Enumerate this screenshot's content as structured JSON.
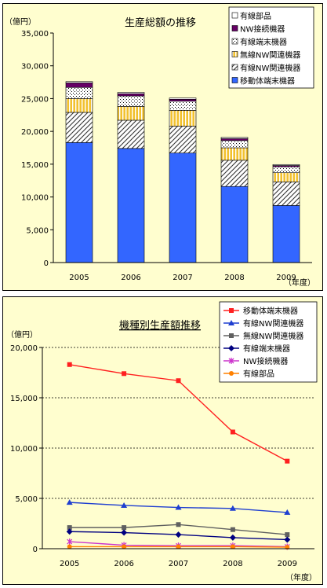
{
  "chart_data": [
    {
      "type": "bar",
      "stacked": true,
      "title": "生産総額の推移",
      "ylabel": "（億円）",
      "xlabel": "（年度）",
      "ylim": [
        0,
        35000
      ],
      "yticks": [
        "0",
        "5,000",
        "10,000",
        "15,000",
        "20,000",
        "25,000",
        "30,000",
        "35,000"
      ],
      "categories": [
        "2005",
        "2006",
        "2007",
        "2008",
        "2009"
      ],
      "legend_position": "top-right",
      "grid": false,
      "series": [
        {
          "name": "移動体端末機器",
          "values": [
            18300,
            17400,
            16700,
            11600,
            8700
          ],
          "color": "#3366ff",
          "pattern": "solid"
        },
        {
          "name": "有線NW関連機器",
          "values": [
            4600,
            4300,
            4100,
            4000,
            3600
          ],
          "color": "#ffffff",
          "pattern": "diagonal"
        },
        {
          "name": "無線NW関連機器",
          "values": [
            2100,
            2100,
            2400,
            1900,
            1400
          ],
          "color": "#f2c12e",
          "pattern": "vertical"
        },
        {
          "name": "有線端末機器",
          "values": [
            1700,
            1600,
            1400,
            1100,
            900
          ],
          "color": "#ffffff",
          "pattern": "dots"
        },
        {
          "name": "NW接続機器",
          "values": [
            700,
            350,
            300,
            300,
            200
          ],
          "color": "#660066",
          "pattern": "solid"
        },
        {
          "name": "有線部品",
          "values": [
            200,
            200,
            200,
            200,
            150
          ],
          "color": "#ffffff",
          "pattern": "plain"
        }
      ]
    },
    {
      "type": "line",
      "title": "機種別生産額推移",
      "ylabel": "（億円）",
      "xlabel": "（年度）",
      "ylim": [
        0,
        20000
      ],
      "yticks": [
        "0",
        "5,000",
        "10,000",
        "15,000",
        "20,000"
      ],
      "categories": [
        "2005",
        "2006",
        "2007",
        "2008",
        "2009"
      ],
      "legend_position": "top-right",
      "grid": true,
      "series": [
        {
          "name": "移動体端末機器",
          "values": [
            18300,
            17400,
            16700,
            11600,
            8700
          ],
          "color": "#ff2020",
          "marker": "square"
        },
        {
          "name": "有線NW関連機器",
          "values": [
            4600,
            4300,
            4100,
            4000,
            3600
          ],
          "color": "#1f3fd0",
          "marker": "triangle"
        },
        {
          "name": "無線NW関連機器",
          "values": [
            2100,
            2100,
            2400,
            1900,
            1400
          ],
          "color": "#606060",
          "marker": "square"
        },
        {
          "name": "有線端末機器",
          "values": [
            1700,
            1600,
            1400,
            1100,
            900
          ],
          "color": "#000080",
          "marker": "diamond"
        },
        {
          "name": "NW接続機器",
          "values": [
            700,
            350,
            300,
            300,
            200
          ],
          "color": "#cc33cc",
          "marker": "x"
        },
        {
          "name": "有線部品",
          "values": [
            200,
            200,
            200,
            200,
            150
          ],
          "color": "#ff8000",
          "marker": "circle"
        }
      ]
    }
  ]
}
